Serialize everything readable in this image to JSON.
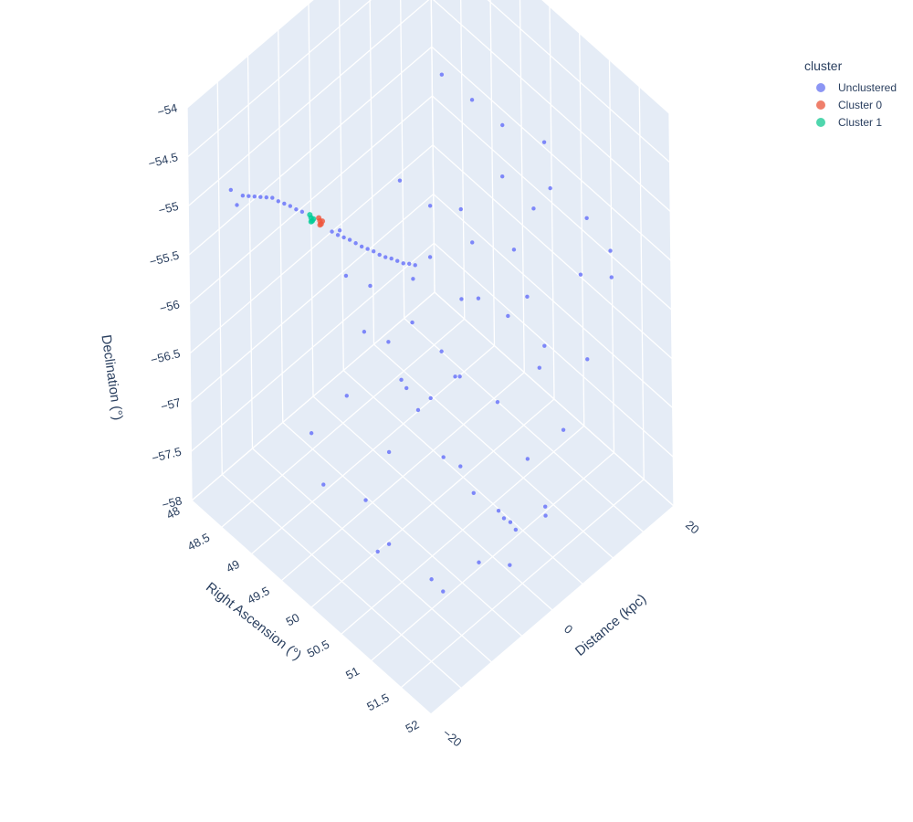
{
  "chart_data": {
    "type": "scatter",
    "dimension": "3d",
    "axes": {
      "x": {
        "label": "Right Ascension (°)",
        "range": [
          48,
          52
        ],
        "ticks": [
          "48",
          "48.5",
          "49",
          "49.5",
          "50",
          "50.5",
          "51",
          "51.5",
          "52"
        ]
      },
      "y": {
        "label": "Distance (kpc)",
        "range": [
          -20,
          20
        ],
        "ticks": [
          "−20",
          "0",
          "20"
        ]
      },
      "z": {
        "label": "Declination (°)",
        "range": [
          -58,
          -54
        ],
        "ticks": [
          "−58",
          "−57.5",
          "−57",
          "−56.5",
          "−56",
          "−55.5",
          "−55",
          "−54.5",
          "−54"
        ]
      }
    },
    "grid": true,
    "legend": {
      "title": "cluster",
      "position": "top-right",
      "entries": [
        {
          "name": "Unclustered",
          "color": "#8c96f4"
        },
        {
          "name": "Cluster 0",
          "color": "#ef7f6b"
        },
        {
          "name": "Cluster 1",
          "color": "#4fd6ad"
        }
      ]
    },
    "series": [
      {
        "name": "Unclustered",
        "color": "#636efa",
        "points": [
          [
            48.1,
            -14,
            -55.1
          ],
          [
            48.2,
            -14,
            -55.2
          ],
          [
            48.3,
            -14,
            -55.05
          ],
          [
            48.4,
            -14,
            -55.0
          ],
          [
            48.5,
            -14,
            -54.95
          ],
          [
            48.6,
            -14,
            -54.9
          ],
          [
            48.7,
            -14,
            -54.85
          ],
          [
            48.8,
            -14,
            -54.8
          ],
          [
            48.9,
            -14,
            -54.78
          ],
          [
            49.0,
            -14,
            -54.75
          ],
          [
            49.1,
            -14,
            -54.72
          ],
          [
            49.2,
            -14,
            -54.7
          ],
          [
            49.3,
            -14,
            -54.67
          ],
          [
            49.8,
            -14,
            -54.6
          ],
          [
            49.9,
            -14,
            -54.58
          ],
          [
            50.0,
            -14,
            -54.55
          ],
          [
            50.1,
            -14,
            -54.52
          ],
          [
            50.2,
            -14,
            -54.5
          ],
          [
            50.3,
            -14,
            -54.48
          ],
          [
            50.4,
            -14,
            -54.45
          ],
          [
            50.5,
            -14,
            -54.42
          ],
          [
            50.6,
            -14,
            -54.4
          ],
          [
            50.7,
            -14,
            -54.37
          ],
          [
            50.8,
            -14,
            -54.33
          ],
          [
            50.9,
            -14,
            -54.3
          ],
          [
            51.0,
            -14,
            -54.27
          ],
          [
            51.1,
            -14,
            -54.22
          ],
          [
            51.2,
            -14,
            -54.18
          ],
          [
            49.0,
            -5,
            -55.5
          ],
          [
            49.2,
            -6,
            -55.8
          ],
          [
            49.4,
            -4,
            -55.9
          ],
          [
            49.6,
            -7,
            -56.1
          ],
          [
            49.8,
            -5,
            -56.2
          ],
          [
            50.0,
            -3,
            -56.0
          ],
          [
            50.2,
            -6,
            -56.4
          ],
          [
            50.4,
            -4,
            -56.5
          ],
          [
            50.6,
            -8,
            -56.3
          ],
          [
            50.8,
            -6,
            -55.7
          ],
          [
            51.0,
            -5,
            -55.9
          ],
          [
            51.2,
            -7,
            -56.6
          ],
          [
            49.5,
            -9,
            -56.7
          ],
          [
            49.7,
            -2,
            -56.8
          ],
          [
            50.1,
            -8,
            -57.0
          ],
          [
            50.5,
            -3,
            -57.1
          ],
          [
            49.3,
            2,
            -55.2
          ],
          [
            49.6,
            4,
            -55.4
          ],
          [
            49.9,
            1,
            -55.6
          ],
          [
            50.2,
            5,
            -55.5
          ],
          [
            50.5,
            3,
            -55.8
          ],
          [
            50.8,
            6,
            -55.3
          ],
          [
            51.1,
            2,
            -55.6
          ],
          [
            51.4,
            5,
            -55.9
          ],
          [
            49.4,
            3,
            -56.2
          ],
          [
            49.8,
            7,
            -56.4
          ],
          [
            50.3,
            1,
            -56.6
          ],
          [
            50.7,
            4,
            -56.8
          ],
          [
            51.0,
            8,
            -56.5
          ],
          [
            51.3,
            3,
            -57.0
          ],
          [
            51.6,
            6,
            -56.7
          ],
          [
            49.2,
            10,
            -54.6
          ],
          [
            49.5,
            12,
            -54.8
          ],
          [
            49.8,
            14,
            -55.0
          ],
          [
            50.1,
            11,
            -55.2
          ],
          [
            50.4,
            15,
            -54.9
          ],
          [
            50.7,
            13,
            -55.1
          ],
          [
            51.0,
            16,
            -55.4
          ],
          [
            51.3,
            12,
            -55.6
          ],
          [
            51.6,
            14,
            -55.3
          ],
          [
            49.6,
            9,
            -55.7
          ],
          [
            50.0,
            17,
            -55.9
          ],
          [
            50.6,
            10,
            -56.1
          ],
          [
            51.2,
            18,
            -56.0
          ],
          [
            51.5,
            11,
            -56.3
          ],
          [
            49.0,
            -10,
            -57.3
          ],
          [
            49.4,
            -12,
            -57.5
          ],
          [
            49.8,
            -9,
            -57.6
          ],
          [
            50.2,
            -11,
            -57.8
          ],
          [
            50.6,
            -13,
            -57.4
          ],
          [
            51.0,
            -10,
            -57.7
          ],
          [
            51.4,
            -12,
            -57.5
          ],
          [
            51.7,
            -9,
            -57.2
          ],
          [
            50.9,
            -2,
            -57.3
          ],
          [
            51.2,
            0,
            -57.5
          ],
          [
            51.5,
            -1,
            -57.4
          ],
          [
            51.8,
            1,
            -57.2
          ],
          [
            51.1,
            2,
            -57.7
          ],
          [
            51.6,
            -3,
            -57.6
          ],
          [
            51.9,
            0,
            -57.0
          ],
          [
            50.8,
            3,
            -57.8
          ]
        ]
      },
      {
        "name": "Cluster 0",
        "color": "#ef553b",
        "points": [
          [
            49.6,
            -14,
            -54.6
          ],
          [
            49.62,
            -14,
            -54.62
          ],
          [
            49.58,
            -14,
            -54.58
          ],
          [
            49.64,
            -14,
            -54.58
          ],
          [
            49.6,
            -14,
            -54.64
          ]
        ]
      },
      {
        "name": "Cluster 1",
        "color": "#00cc96",
        "points": [
          [
            49.45,
            -14,
            -54.65
          ],
          [
            49.47,
            -14,
            -54.67
          ],
          [
            49.43,
            -14,
            -54.63
          ],
          [
            49.49,
            -14,
            -54.64
          ],
          [
            49.45,
            -14,
            -54.69
          ]
        ]
      }
    ]
  }
}
